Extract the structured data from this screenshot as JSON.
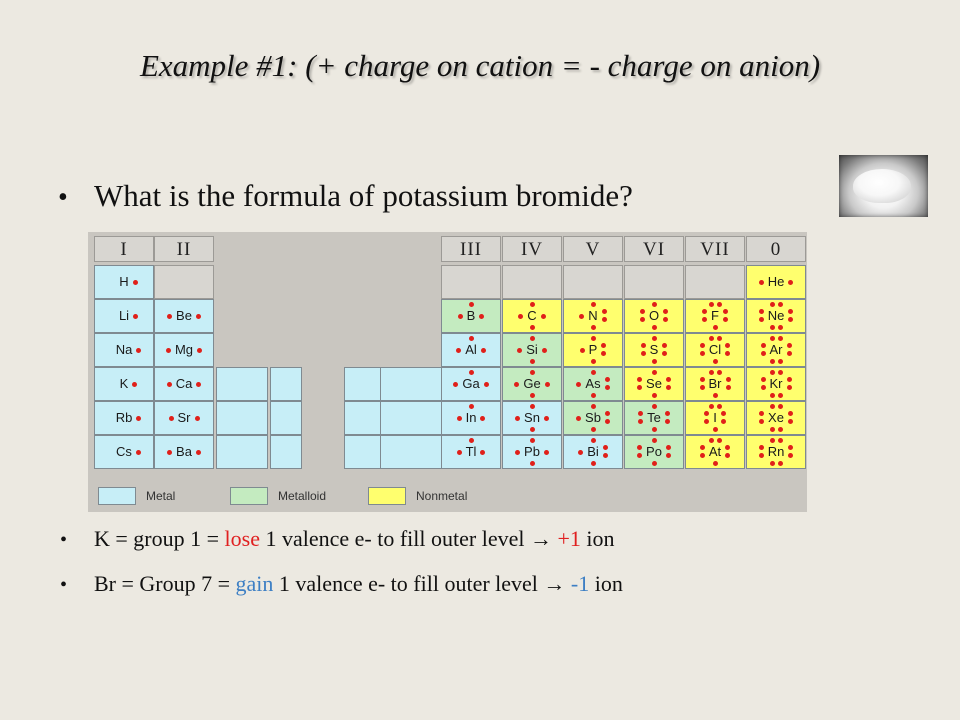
{
  "title": "Example #1: (+ charge on cation = - charge on anion)",
  "question": "What is the formula of potassium bromide?",
  "bullets": {
    "k": {
      "before": "K = group 1  = ",
      "verb": "lose",
      "mid": " 1 valence e- to fill outer level → ",
      "charge": "+1",
      "after": " ion"
    },
    "br": {
      "before": "Br = Group 7 =  ",
      "verb": "gain",
      "mid": " 1 valence e- to fill outer level → ",
      "charge": "-1",
      "after": " ion"
    }
  },
  "table": {
    "group_headers": [
      "I",
      "II",
      "III",
      "IV",
      "V",
      "VI",
      "VII",
      "0"
    ],
    "left_columns": [
      [
        "H",
        "Li",
        "Na",
        "K",
        "Rb",
        "Cs"
      ],
      [
        "",
        "Be",
        "Mg",
        "Ca",
        "Sr",
        "Ba"
      ]
    ],
    "right_columns": [
      [
        "",
        "B",
        "Al",
        "Ga",
        "In",
        "Tl"
      ],
      [
        "",
        "C",
        "Si",
        "Ge",
        "Sn",
        "Pb"
      ],
      [
        "",
        "N",
        "P",
        "As",
        "Sb",
        "Bi"
      ],
      [
        "",
        "O",
        "S",
        "Se",
        "Te",
        "Po"
      ],
      [
        "",
        "F",
        "Cl",
        "Br",
        "I",
        "At"
      ],
      [
        "He",
        "Ne",
        "Ar",
        "Kr",
        "Xe",
        "Rn"
      ]
    ],
    "legend": [
      "Metal",
      "Metalloid",
      "Nonmetal"
    ]
  },
  "colors": {
    "background": "#ece9e1",
    "metal": "#c7eef7",
    "metalloid": "#c4ebc0",
    "nonmetal": "#ffff6e",
    "electron_dot": "#e0201a",
    "lose_text": "#e02020",
    "gain_text": "#3d7fc4"
  },
  "icons": [
    "salt-pile-photo"
  ]
}
